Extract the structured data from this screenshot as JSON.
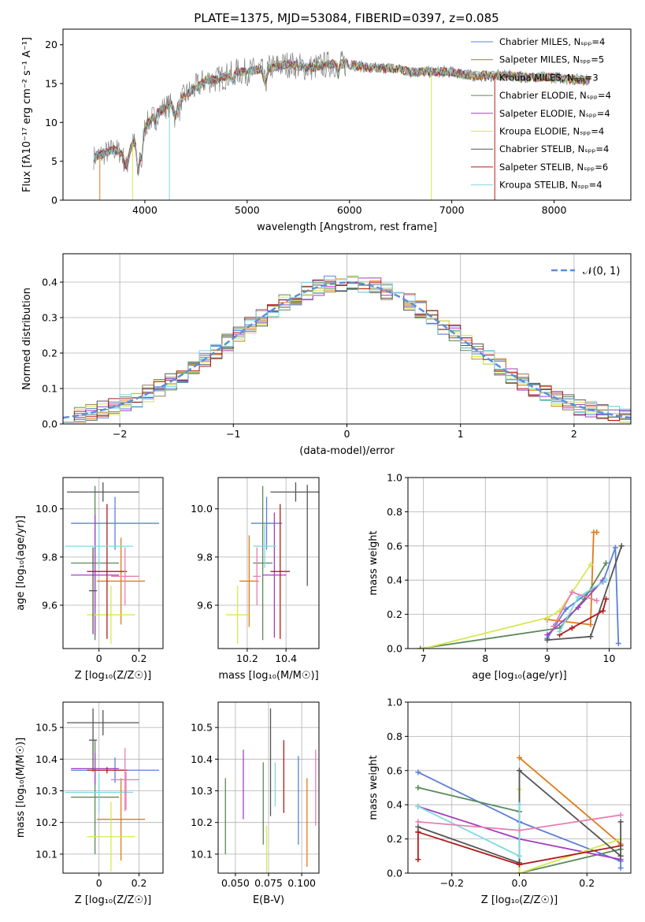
{
  "figure": {
    "title": "PLATE=1375, MJD=53084, FIBERID=0397, z=0.085"
  },
  "palette": {
    "chabrier_miles": "#5b7fd9",
    "salpeter_miles": "#9a7a4a",
    "kroupa_miles": "#e07b1a",
    "chabrier_elodie": "#5a8a5a",
    "salpeter_elodie": "#a040c0",
    "kroupa_elodie": "#d6e850",
    "chabrier_stelib": "#555555",
    "salpeter_stelib": "#b01c1c",
    "kroupa_stelib": "#7fd8e0",
    "pink": "#e87fb0",
    "data": "#808080",
    "gauss": "#5b8fd9"
  },
  "chart_data": [
    {
      "id": "spectrum",
      "type": "line",
      "xlabel": "wavelength [Angstrom, rest frame]",
      "ylabel": "Flux [fλ10⁻¹⁷ erg cm⁻² s⁻¹ A⁻¹]",
      "xlim": [
        3200,
        8750
      ],
      "ylim": [
        0,
        22
      ],
      "xticks": [
        4000,
        5000,
        6000,
        7000,
        8000
      ],
      "yticks": [
        0,
        5,
        10,
        15,
        20
      ],
      "legend_position": "top-right",
      "series": [
        {
          "name": "Chabrier MILES, Nₛₚₚ=4",
          "color": "#5b7fd9"
        },
        {
          "name": "Salpeter MILES, Nₛₚₚ=5",
          "color": "#9a7a4a"
        },
        {
          "name": "Kroupa MILES, Nₛₚₚ=3",
          "color": "#e07b1a"
        },
        {
          "name": "Chabrier ELODIE, Nₛₚₚ=4",
          "color": "#5a8a5a"
        },
        {
          "name": "Salpeter ELODIE, Nₛₚₚ=4",
          "color": "#a040c0"
        },
        {
          "name": "Kroupa ELODIE, Nₛₚₚ=4",
          "color": "#d6e850"
        },
        {
          "name": "Chabrier STELIB, Nₛₚₚ=4",
          "color": "#555555"
        },
        {
          "name": "Salpeter STELIB, Nₛₚₚ=6",
          "color": "#b01c1c"
        },
        {
          "name": "Kroupa STELIB, Nₛₚₚ=4",
          "color": "#7fd8e0"
        }
      ],
      "continuum": {
        "x": [
          3500,
          3600,
          3700,
          3800,
          3900,
          4000,
          4100,
          4200,
          4300,
          4400,
          4500,
          4600,
          4700,
          4800,
          4900,
          5000,
          5200,
          5400,
          5600,
          5800,
          6000,
          6200,
          6400,
          6600,
          6800,
          7000,
          7200,
          7400,
          7600,
          7800,
          8000,
          8200,
          8400
        ],
        "y": [
          5.5,
          6.0,
          6.5,
          6.0,
          7.5,
          9.5,
          11.0,
          12.0,
          12.5,
          13.5,
          14.5,
          15.5,
          15.5,
          16.0,
          16.5,
          16.5,
          17.0,
          17.5,
          17.0,
          17.5,
          17.5,
          17.0,
          17.0,
          16.5,
          16.5,
          16.5,
          16.0,
          16.0,
          16.0,
          15.8,
          15.8,
          15.5,
          15.5
        ]
      }
    },
    {
      "id": "residuals",
      "type": "histogram",
      "xlabel": "(data-model)/error",
      "ylabel": "Normed distribution",
      "xlim": [
        -2.5,
        2.5
      ],
      "ylim": [
        0,
        0.48
      ],
      "xticks": [
        -2,
        -1,
        0,
        1,
        2
      ],
      "yticks": [
        0.0,
        0.1,
        0.2,
        0.3,
        0.4
      ],
      "legend_position": "top-right",
      "gauss_label": "𝒩(0, 1)"
    },
    {
      "id": "age_vs_Z",
      "type": "scatter",
      "xlabel": "Z [log₁₀(Z/Z☉)]",
      "ylabel": "age  [log₁₀(age/yr)]",
      "xlim": [
        -0.18,
        0.32
      ],
      "ylim": [
        9.42,
        10.13
      ],
      "xticks": [
        0.0,
        0.2
      ],
      "yticks": [
        9.6,
        9.8,
        10.0
      ],
      "points": [
        {
          "x": 0.08,
          "y": 9.94,
          "xerr": 0.22,
          "yerr": 0.11,
          "c": "#5b7fd9"
        },
        {
          "x": 0.11,
          "y": 9.7,
          "xerr": 0.12,
          "yerr": 0.18,
          "c": "#e07b1a"
        },
        {
          "x": -0.02,
          "y": 9.775,
          "xerr": 0.12,
          "yerr": 0.32,
          "c": "#5a8a5a"
        },
        {
          "x": -0.02,
          "y": 9.725,
          "xerr": 0.12,
          "yerr": 0.25,
          "c": "#a040c0"
        },
        {
          "x": 0.06,
          "y": 9.56,
          "xerr": 0.12,
          "yerr": 0.12,
          "c": "#d6e850"
        },
        {
          "x": 0.02,
          "y": 10.07,
          "xerr": 0.18,
          "yerr": 0.04,
          "c": "#555555"
        },
        {
          "x": 0.04,
          "y": 9.74,
          "xerr": 0.1,
          "yerr": 0.28,
          "c": "#b01c1c"
        },
        {
          "x": 0.0,
          "y": 9.845,
          "xerr": 0.17,
          "yerr": 0.09,
          "c": "#7fd8e0"
        },
        {
          "x": 0.13,
          "y": 9.72,
          "xerr": 0.07,
          "yerr": 0.12,
          "c": "#e87fb0"
        },
        {
          "x": -0.03,
          "y": 9.66,
          "xerr": 0.02,
          "yerr": 0.18,
          "c": "#555555"
        }
      ]
    },
    {
      "id": "age_vs_mass",
      "type": "scatter",
      "xlabel": "mass [log₁₀(M/M☉)]",
      "ylabel": "",
      "xlim": [
        10.05,
        10.57
      ],
      "ylim": [
        9.42,
        10.13
      ],
      "xticks": [
        10.2,
        10.4
      ],
      "yticks": [
        9.6,
        9.8,
        10.0
      ],
      "points": [
        {
          "x": 10.3,
          "y": 9.94,
          "xerr": 0.08,
          "yerr": 0.11,
          "c": "#5b7fd9"
        },
        {
          "x": 10.21,
          "y": 9.7,
          "xerr": 0.05,
          "yerr": 0.19,
          "c": "#e07b1a"
        },
        {
          "x": 10.28,
          "y": 9.775,
          "xerr": 0.05,
          "yerr": 0.32,
          "c": "#5a8a5a"
        },
        {
          "x": 10.34,
          "y": 9.725,
          "xerr": 0.06,
          "yerr": 0.26,
          "c": "#a040c0"
        },
        {
          "x": 10.15,
          "y": 9.56,
          "xerr": 0.06,
          "yerr": 0.12,
          "c": "#d6e850"
        },
        {
          "x": 10.45,
          "y": 10.07,
          "xerr": 0.13,
          "yerr": 0.04,
          "c": "#555555"
        },
        {
          "x": 10.37,
          "y": 9.74,
          "xerr": 0.05,
          "yerr": 0.28,
          "c": "#b01c1c"
        },
        {
          "x": 10.29,
          "y": 9.845,
          "xerr": 0.06,
          "yerr": 0.09,
          "c": "#7fd8e0"
        },
        {
          "x": 10.25,
          "y": 9.72,
          "xerr": 0.02,
          "yerr": 0.12,
          "c": "#e87fb0"
        },
        {
          "x": 10.51,
          "y": 9.89,
          "xerr": 0.0,
          "yerr": 0.21,
          "c": "#555555"
        }
      ]
    },
    {
      "id": "massweight_vs_age",
      "type": "line",
      "xlabel": "age  [log₁₀(age/yr)]",
      "ylabel": "mass weight",
      "xlim": [
        6.75,
        10.35
      ],
      "ylim": [
        0,
        1.0
      ],
      "xticks": [
        7,
        8,
        9,
        10
      ],
      "yticks": [
        0.0,
        0.2,
        0.4,
        0.6,
        0.8,
        1.0
      ],
      "series": [
        {
          "c": "#5b7fd9",
          "x": [
            9.0,
            9.3,
            9.9,
            10.1,
            10.15
          ],
          "y": [
            0.06,
            0.23,
            0.39,
            0.59,
            0.03
          ]
        },
        {
          "c": "#e07b1a",
          "x": [
            9.0,
            9.7,
            9.75,
            9.8
          ],
          "y": [
            0.17,
            0.14,
            0.68,
            0.68
          ]
        },
        {
          "c": "#5a8a5a",
          "x": [
            6.95,
            9.2,
            9.6,
            9.95
          ],
          "y": [
            0.0,
            0.12,
            0.29,
            0.5
          ]
        },
        {
          "c": "#a040c0",
          "x": [
            9.0,
            9.5,
            9.9
          ],
          "y": [
            0.08,
            0.24,
            0.4
          ]
        },
        {
          "c": "#d6e850",
          "x": [
            7.0,
            9.0,
            9.2,
            9.7
          ],
          "y": [
            0.0,
            0.18,
            0.22,
            0.49
          ]
        },
        {
          "c": "#555555",
          "x": [
            9.0,
            9.7,
            10.2
          ],
          "y": [
            0.05,
            0.07,
            0.6
          ]
        },
        {
          "c": "#b01c1c",
          "x": [
            9.2,
            9.4,
            9.9,
            9.95
          ],
          "y": [
            0.08,
            0.12,
            0.22,
            0.29
          ]
        },
        {
          "c": "#7fd8e0",
          "x": [
            9.2,
            9.5,
            9.95
          ],
          "y": [
            0.1,
            0.3,
            0.4
          ]
        },
        {
          "c": "#e87fb0",
          "x": [
            9.1,
            9.4,
            9.8
          ],
          "y": [
            0.13,
            0.33,
            0.28
          ]
        }
      ]
    },
    {
      "id": "mass_vs_Z",
      "type": "scatter",
      "xlabel": "Z [log₁₀(Z/Z☉)]",
      "ylabel": "mass [log₁₀(M/M☉)]",
      "xlim": [
        -0.18,
        0.32
      ],
      "ylim": [
        10.04,
        10.58
      ],
      "xticks": [
        0.0,
        0.2
      ],
      "yticks": [
        10.1,
        10.2,
        10.3,
        10.4,
        10.5
      ],
      "points": [
        {
          "x": 0.08,
          "y": 10.365,
          "xerr": 0.22,
          "yerr": 0.04,
          "c": "#5b7fd9"
        },
        {
          "x": 0.11,
          "y": 10.21,
          "xerr": 0.12,
          "yerr": 0.13,
          "c": "#e07b1a"
        },
        {
          "x": -0.02,
          "y": 10.28,
          "xerr": 0.12,
          "yerr": 0.18,
          "c": "#5a8a5a"
        },
        {
          "x": -0.02,
          "y": 10.37,
          "xerr": 0.12,
          "yerr": 0.05,
          "c": "#a040c0"
        },
        {
          "x": 0.06,
          "y": 10.155,
          "xerr": 0.12,
          "yerr": 0.11,
          "c": "#d6e850"
        },
        {
          "x": 0.02,
          "y": 10.515,
          "xerr": 0.18,
          "yerr": 0.04,
          "c": "#555555"
        },
        {
          "x": 0.04,
          "y": 10.365,
          "xerr": 0.1,
          "yerr": 0.01,
          "c": "#b01c1c"
        },
        {
          "x": 0.0,
          "y": 10.295,
          "xerr": 0.17,
          "yerr": 0.06,
          "c": "#7fd8e0"
        },
        {
          "x": 0.13,
          "y": 10.335,
          "xerr": 0.07,
          "yerr": 0.1,
          "c": "#e87fb0"
        },
        {
          "x": -0.03,
          "y": 10.46,
          "xerr": 0.02,
          "yerr": 0.1,
          "c": "#555555"
        },
        {
          "x": 0.135,
          "y": 10.3,
          "xerr": 0.0,
          "yerr": 0.06,
          "c": "#e87fb0"
        }
      ]
    },
    {
      "id": "mass_vs_ebv",
      "type": "scatter",
      "xlabel": "E(B-V)",
      "ylabel": "",
      "xlim": [
        0.037,
        0.113
      ],
      "ylim": [
        10.04,
        10.58
      ],
      "xticks": [
        0.05,
        0.075,
        0.1
      ],
      "xticklabels": [
        "0.050",
        "0.075",
        "0.100"
      ],
      "yticks": [
        10.1,
        10.2,
        10.3,
        10.4,
        10.5
      ],
      "points": [
        {
          "x": 0.0425,
          "y": 10.22,
          "yerr": 0.12,
          "c": "#5a8a5a"
        },
        {
          "x": 0.056,
          "y": 10.32,
          "yerr": 0.11,
          "c": "#a040c0"
        },
        {
          "x": 0.071,
          "y": 10.26,
          "yerr": 0.13,
          "c": "#5a8a5a"
        },
        {
          "x": 0.0735,
          "y": 10.11,
          "yerr": 0.08,
          "c": "#d6e850"
        },
        {
          "x": 0.0765,
          "y": 10.39,
          "yerr": 0.17,
          "c": "#555555"
        },
        {
          "x": 0.08,
          "y": 10.32,
          "yerr": 0.07,
          "c": "#7fd8e0"
        },
        {
          "x": 0.0865,
          "y": 10.345,
          "yerr": 0.115,
          "c": "#b01c1c"
        },
        {
          "x": 0.0975,
          "y": 10.27,
          "yerr": 0.14,
          "c": "#5b7fd9"
        },
        {
          "x": 0.104,
          "y": 10.2,
          "yerr": 0.14,
          "c": "#e07b1a"
        },
        {
          "x": 0.1105,
          "y": 10.31,
          "yerr": 0.12,
          "c": "#e87fb0"
        }
      ]
    },
    {
      "id": "massweight_vs_Z",
      "type": "line",
      "xlabel": "Z [log₁₀(Z/Z☉)]",
      "ylabel": "mass weight",
      "xlim": [
        -0.33,
        0.33
      ],
      "ylim": [
        0,
        1.0
      ],
      "xticks": [
        -0.2,
        0.0,
        0.2
      ],
      "yticks": [
        0.0,
        0.2,
        0.4,
        0.6,
        0.8,
        1.0
      ],
      "series": [
        {
          "c": "#5b7fd9",
          "x": [
            -0.3,
            0.0,
            0.3,
            0.3
          ],
          "y": [
            0.59,
            0.3,
            0.07,
            0.03
          ]
        },
        {
          "c": "#e07b1a",
          "x": [
            0.0,
            0.3
          ],
          "y": [
            0.675,
            0.17
          ]
        },
        {
          "c": "#5a8a5a",
          "x": [
            -0.3,
            0.0,
            0.0,
            0.3
          ],
          "y": [
            0.5,
            0.36,
            0.0,
            0.14
          ]
        },
        {
          "c": "#a040c0",
          "x": [
            -0.3,
            0.0,
            0.3
          ],
          "y": [
            0.39,
            0.2,
            0.08
          ]
        },
        {
          "c": "#d6e850",
          "x": [
            0.0,
            0.0,
            0.3
          ],
          "y": [
            0.49,
            0.0,
            0.2
          ]
        },
        {
          "c": "#555555",
          "x": [
            -0.3,
            0.0,
            0.0,
            0.3
          ],
          "y": [
            0.27,
            0.06,
            0.6,
            0.1
          ]
        },
        {
          "c": "#b01c1c",
          "x": [
            -0.3,
            0.0,
            0.3
          ],
          "y": [
            0.24,
            0.05,
            0.16
          ]
        },
        {
          "c": "#7fd8e0",
          "x": [
            -0.3,
            0.0,
            0.0
          ],
          "y": [
            0.39,
            0.1,
            0.4
          ]
        },
        {
          "c": "#e87fb0",
          "x": [
            -0.3,
            0.0,
            0.3
          ],
          "y": [
            0.3,
            0.25,
            0.34
          ]
        },
        {
          "c": "#b01c1c",
          "x": [
            -0.3,
            -0.3
          ],
          "y": [
            0.08,
            0.24
          ]
        },
        {
          "c": "#555555",
          "x": [
            0.3,
            0.3
          ],
          "y": [
            0.1,
            0.3
          ]
        }
      ]
    }
  ]
}
